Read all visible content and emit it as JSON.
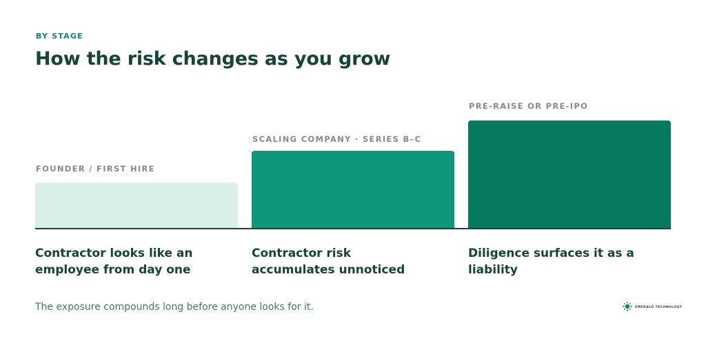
{
  "header": {
    "eyebrow": "BY STAGE",
    "title": "How the risk changes as you grow"
  },
  "stages": [
    {
      "label": "FOUNDER / FIRST HIRE",
      "description": "Contractor looks like an employee from day one",
      "color": "#d9efe8",
      "risk_level": 0.42
    },
    {
      "label": "SCALING COMPANY · SERIES B–C",
      "description": "Contractor risk accumulates unnoticed",
      "color": "#10977a",
      "risk_level": 0.72
    },
    {
      "label": "PRE-RAISE OR PRE-IPO",
      "description": "Diligence surfaces it as a liability",
      "color": "#067a5c",
      "risk_level": 1.0
    }
  ],
  "footnote": "The exposure compounds long before anyone looks for it.",
  "brand": {
    "name": "EMERALD TECHNOLOGY",
    "icon": "emerald-logo-icon"
  },
  "colors": {
    "accent": "#0e8a68",
    "heading": "#16433a",
    "label_gray": "#8a8a8a",
    "footnote": "#3e7a66"
  }
}
